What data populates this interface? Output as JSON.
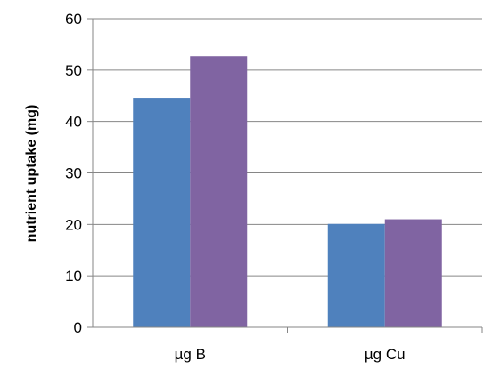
{
  "chart_data": {
    "type": "bar",
    "title": "",
    "xlabel": "",
    "ylabel": "nutrient uptake (mg)",
    "categories": [
      "µg B",
      "µg Cu"
    ],
    "series": [
      {
        "values": [
          44.6,
          20.1
        ],
        "color": "#4F81BD"
      },
      {
        "values": [
          52.7,
          21.0
        ],
        "color": "#8064A2"
      }
    ],
    "ylim": [
      0,
      60
    ],
    "yticks": [
      0,
      10,
      20,
      30,
      40,
      50,
      60
    ],
    "grid": "horizontal",
    "grid_color": "#868686"
  }
}
